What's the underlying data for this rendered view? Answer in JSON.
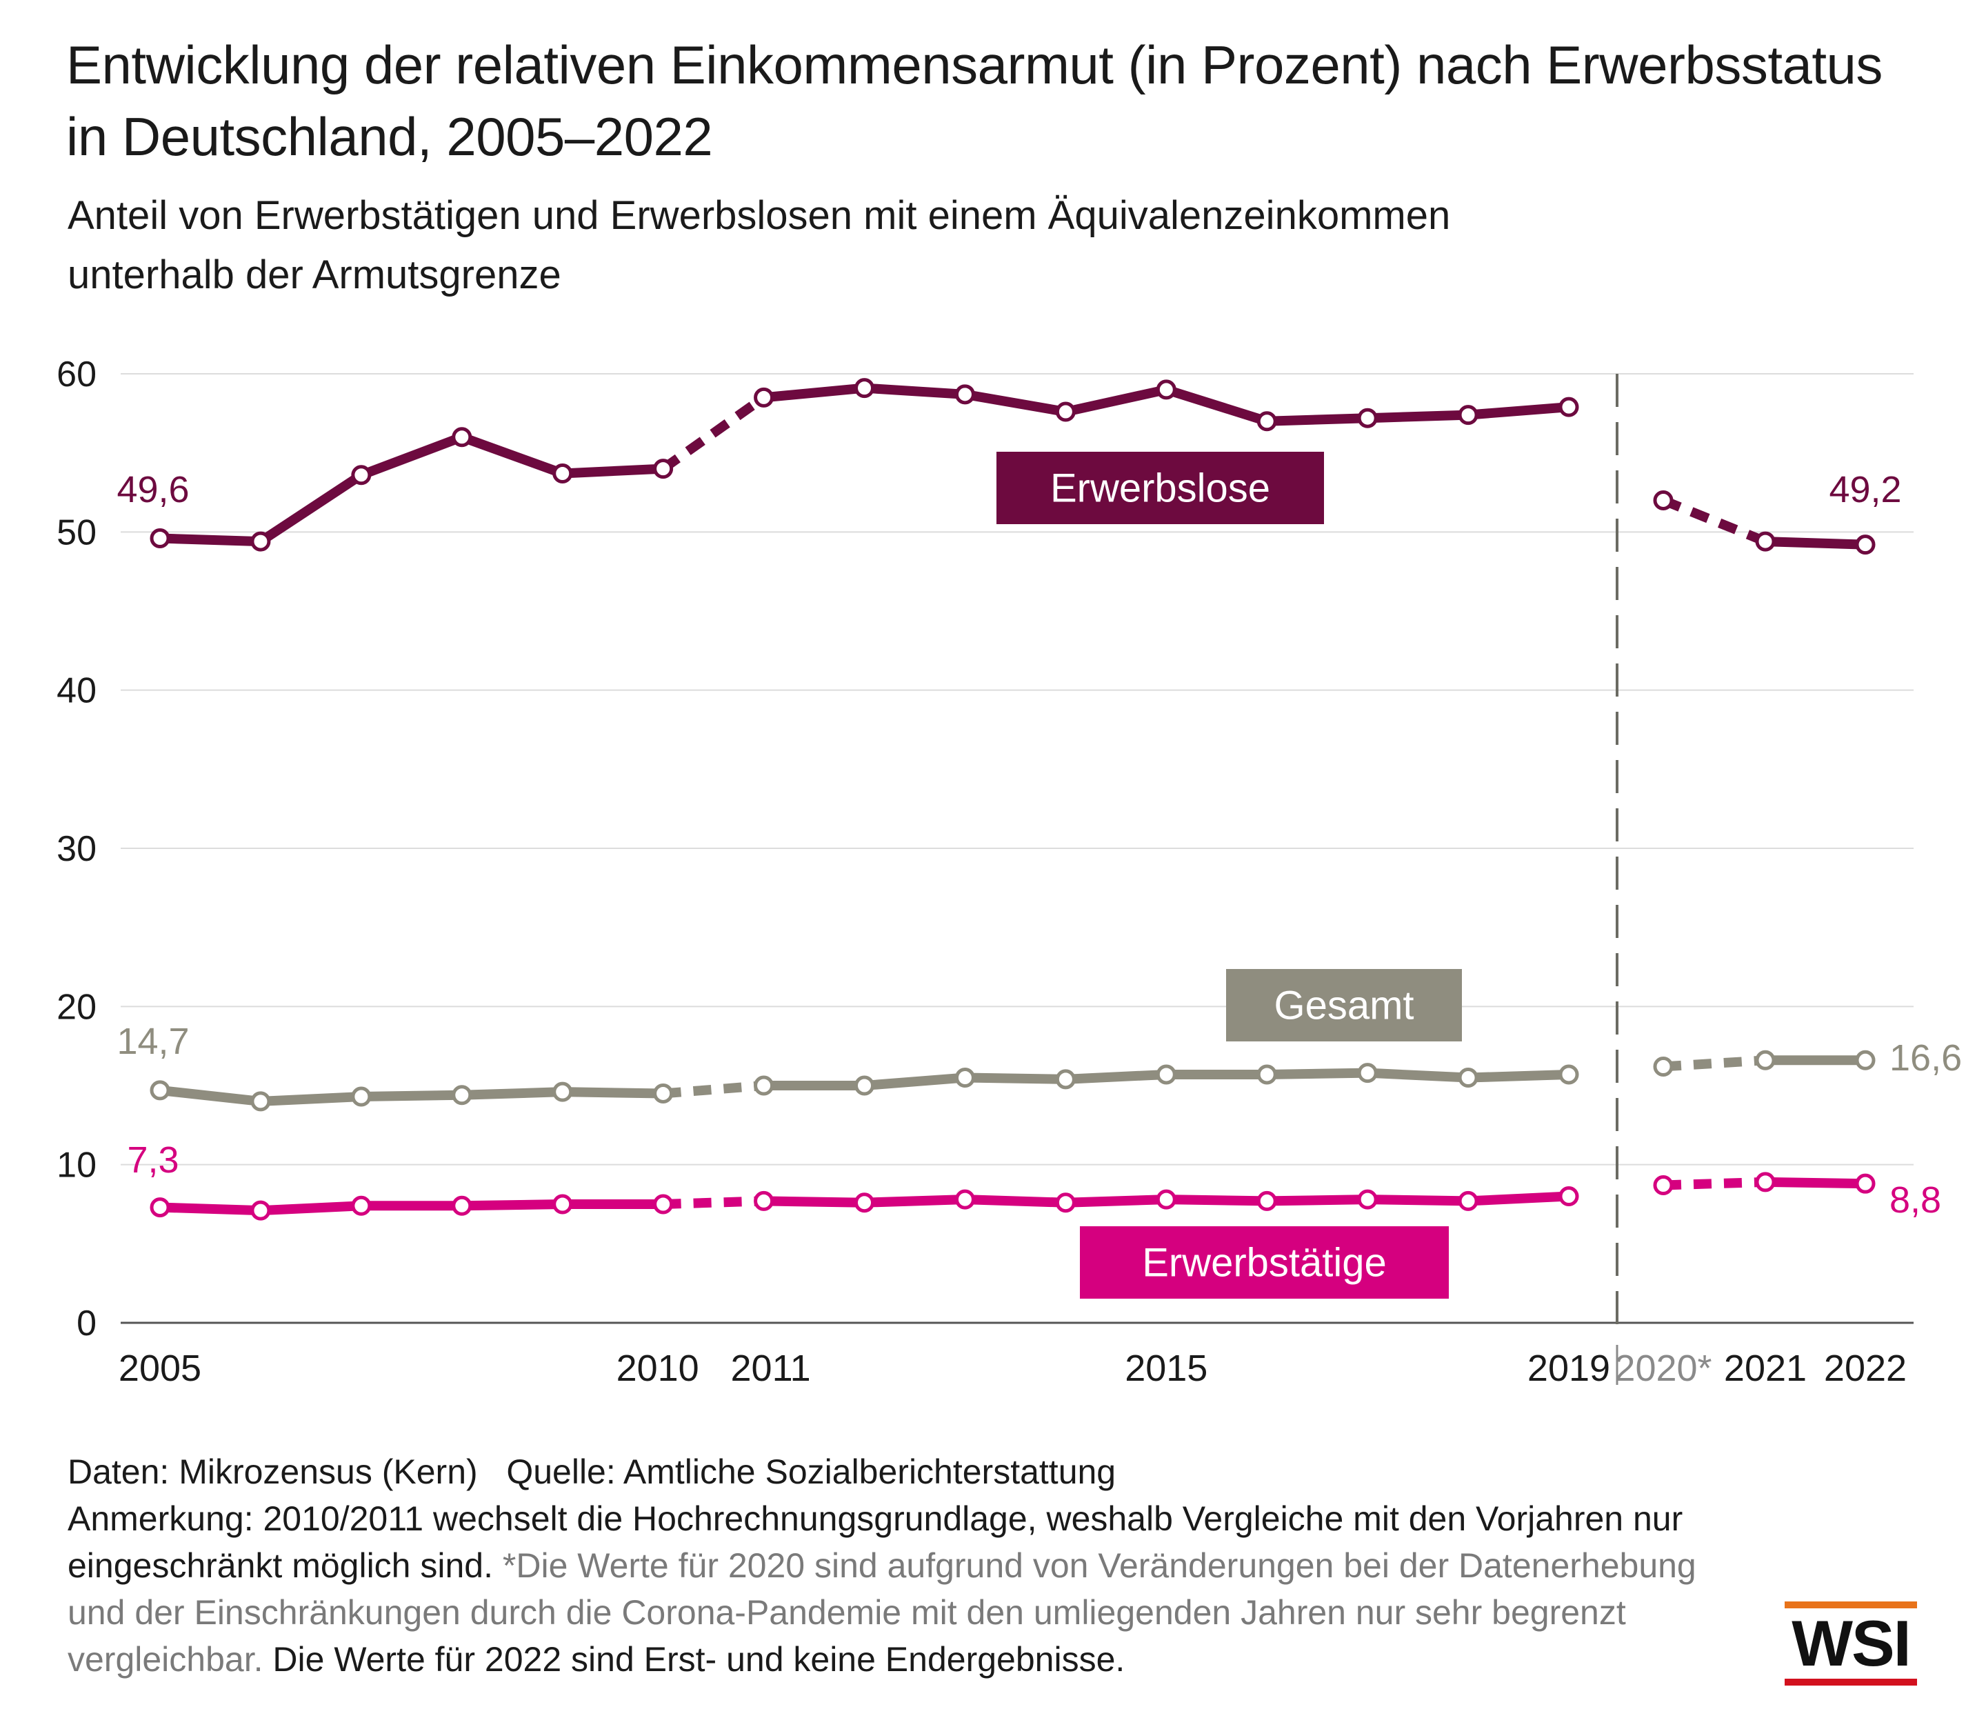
{
  "title": "Entwicklung der relativen Einkommensarmut (in Prozent) nach Erwerbsstatus in Deutschland, 2005–2022",
  "subtitle": "Anteil von Erwerbstätigen und Erwerbslosen mit einem Äquivalenzeinkommen unterhalb der Armutsgrenze",
  "footer": {
    "data_source": "Daten: Mikrozensus (Kern)   Quelle: Amtliche Sozialberichterstattung",
    "note_black": "Anmerkung: 2010/2011 wechselt die Hochrechnungsgrundlage, weshalb Vergleiche mit den Vorjahren nur eingeschränkt möglich sind.",
    "note_gray": "*Die Werte für 2020 sind aufgrund von Veränderungen bei der Datenerhebung und der Einschränkungen durch die Corona-Pandemie mit den umliegenden Jahren nur sehr begrenzt vergleichbar.",
    "note_black_end": "Die Werte für 2022 sind Erst- und keine Endergebnisse."
  },
  "logo": {
    "text": "WSI",
    "colors": {
      "top": "#e8731a",
      "bottom": "#d2111e"
    }
  },
  "chart_data": {
    "type": "line",
    "x": [
      2005,
      2006,
      2007,
      2008,
      2009,
      2010,
      2011,
      2012,
      2013,
      2014,
      2015,
      2016,
      2017,
      2018,
      2019,
      2020,
      2021,
      2022
    ],
    "xticks": [
      "2005",
      "2010",
      "2011",
      "2015",
      "2019",
      "2020*",
      "2021",
      "2022"
    ],
    "yticks": [
      "0",
      "10",
      "20",
      "30",
      "40",
      "50",
      "60"
    ],
    "ylim": [
      0,
      60
    ],
    "grid": "horizontal",
    "break_between": [
      2019,
      2020
    ],
    "dashed_segments": [
      [
        2010,
        2011
      ],
      [
        2020,
        2021
      ]
    ],
    "series": [
      {
        "name": "Erwerbslose",
        "color": "#6d0a3f",
        "label_bg": "#6d0a3f",
        "values": [
          49.6,
          49.4,
          53.6,
          56.0,
          53.7,
          54.0,
          58.5,
          59.1,
          58.7,
          57.6,
          59.0,
          57.0,
          57.2,
          57.4,
          57.9,
          52.0,
          49.4,
          49.2
        ],
        "start_label": "49,6",
        "end_label": "49,2"
      },
      {
        "name": "Gesamt",
        "color": "#8f8d7f",
        "label_bg": "#8f8d7f",
        "values": [
          14.7,
          14.0,
          14.3,
          14.4,
          14.6,
          14.5,
          15.0,
          15.0,
          15.5,
          15.4,
          15.7,
          15.7,
          15.8,
          15.5,
          15.7,
          16.2,
          16.6,
          16.6
        ],
        "start_label": "14,7",
        "end_label": "16,6"
      },
      {
        "name": "Erwerbstätige",
        "color": "#d5007f",
        "label_bg": "#d5007f",
        "values": [
          7.3,
          7.1,
          7.4,
          7.4,
          7.5,
          7.5,
          7.7,
          7.6,
          7.8,
          7.6,
          7.8,
          7.7,
          7.8,
          7.7,
          8.0,
          8.7,
          8.9,
          8.8
        ],
        "start_label": "7,3",
        "end_label": "8,8"
      }
    ]
  }
}
